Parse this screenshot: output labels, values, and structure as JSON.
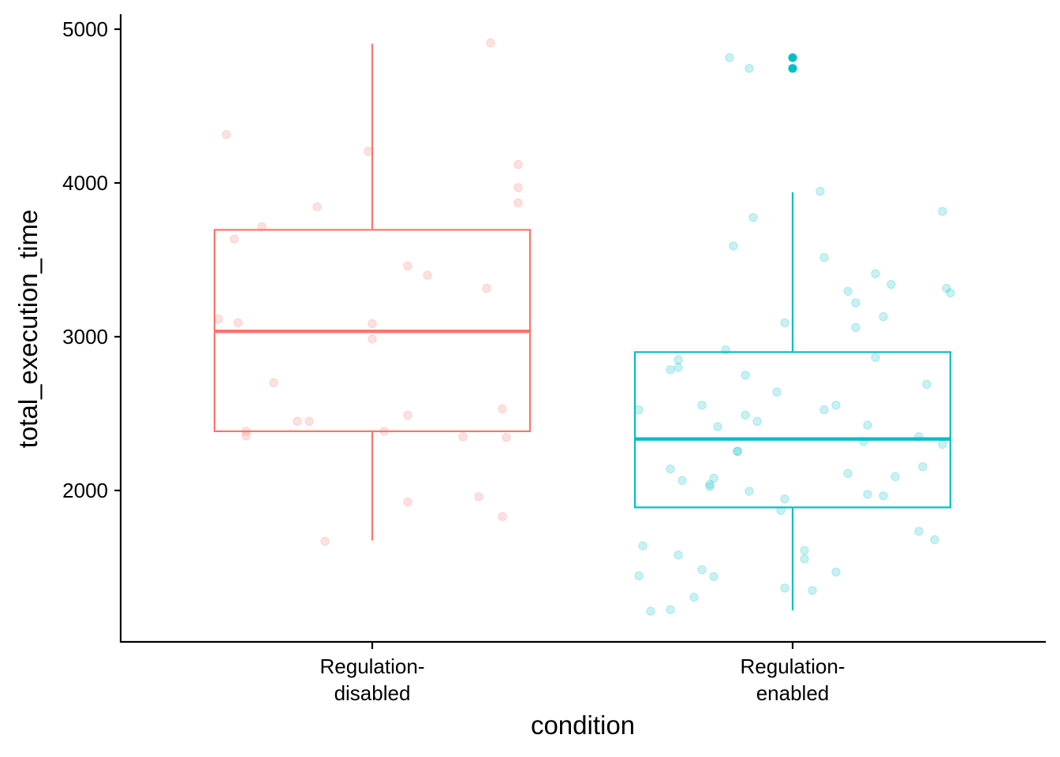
{
  "chart_data": {
    "type": "box",
    "xlabel": "condition",
    "ylabel": "total_execution_time",
    "ylim": [
      1100,
      5100
    ],
    "y_ticks": [
      2000,
      3000,
      4000,
      5000
    ],
    "grid": false,
    "legend": "none",
    "groups": [
      {
        "label_lines": [
          "Regulation-",
          "disabled"
        ],
        "color": "#F8766D",
        "box": {
          "q1": 2385,
          "median": 3035,
          "q3": 3695,
          "whisker_low": 1675,
          "whisker_high": 4905
        },
        "outliers": [],
        "points": [
          {
            "dx": -0.39,
            "y": 3115
          },
          {
            "dx": -0.37,
            "y": 4315
          },
          {
            "dx": -0.35,
            "y": 3635
          },
          {
            "dx": -0.34,
            "y": 3090
          },
          {
            "dx": -0.32,
            "y": 2385
          },
          {
            "dx": -0.32,
            "y": 2355
          },
          {
            "dx": -0.28,
            "y": 3715
          },
          {
            "dx": -0.25,
            "y": 2700
          },
          {
            "dx": -0.19,
            "y": 2450
          },
          {
            "dx": -0.16,
            "y": 2450
          },
          {
            "dx": -0.14,
            "y": 3845
          },
          {
            "dx": -0.12,
            "y": 1670
          },
          {
            "dx": -0.01,
            "y": 4205
          },
          {
            "dx": 0.0,
            "y": 3085
          },
          {
            "dx": 0.0,
            "y": 2985
          },
          {
            "dx": 0.03,
            "y": 2385
          },
          {
            "dx": 0.09,
            "y": 3460
          },
          {
            "dx": 0.09,
            "y": 2490
          },
          {
            "dx": 0.09,
            "y": 1925
          },
          {
            "dx": 0.14,
            "y": 3400
          },
          {
            "dx": 0.23,
            "y": 2350
          },
          {
            "dx": 0.27,
            "y": 1960
          },
          {
            "dx": 0.29,
            "y": 3315
          },
          {
            "dx": 0.3,
            "y": 4910
          },
          {
            "dx": 0.33,
            "y": 2530
          },
          {
            "dx": 0.33,
            "y": 1830
          },
          {
            "dx": 0.34,
            "y": 2345
          },
          {
            "dx": 0.37,
            "y": 3970
          },
          {
            "dx": 0.37,
            "y": 3870
          },
          {
            "dx": 0.37,
            "y": 4120
          }
        ]
      },
      {
        "label_lines": [
          "Regulation-",
          "enabled"
        ],
        "color": "#00BFC4",
        "box": {
          "q1": 1890,
          "median": 2335,
          "q3": 2900,
          "whisker_low": 1220,
          "whisker_high": 3940
        },
        "outliers": [
          4815,
          4745
        ],
        "points": [
          {
            "dx": -0.39,
            "y": 2525
          },
          {
            "dx": -0.38,
            "y": 1640
          },
          {
            "dx": -0.39,
            "y": 1445
          },
          {
            "dx": -0.36,
            "y": 1215
          },
          {
            "dx": -0.31,
            "y": 1225
          },
          {
            "dx": -0.31,
            "y": 2140
          },
          {
            "dx": -0.31,
            "y": 2785
          },
          {
            "dx": -0.29,
            "y": 2850
          },
          {
            "dx": -0.29,
            "y": 2800
          },
          {
            "dx": -0.29,
            "y": 1580
          },
          {
            "dx": -0.28,
            "y": 2065
          },
          {
            "dx": -0.25,
            "y": 1305
          },
          {
            "dx": -0.23,
            "y": 2555
          },
          {
            "dx": -0.23,
            "y": 1485
          },
          {
            "dx": -0.21,
            "y": 2040
          },
          {
            "dx": -0.21,
            "y": 2025
          },
          {
            "dx": -0.2,
            "y": 1440
          },
          {
            "dx": -0.2,
            "y": 2080
          },
          {
            "dx": -0.19,
            "y": 2415
          },
          {
            "dx": -0.17,
            "y": 2915
          },
          {
            "dx": -0.16,
            "y": 4815
          },
          {
            "dx": -0.15,
            "y": 3590
          },
          {
            "dx": -0.14,
            "y": 2255
          },
          {
            "dx": -0.14,
            "y": 2255
          },
          {
            "dx": -0.12,
            "y": 2750
          },
          {
            "dx": -0.12,
            "y": 2490
          },
          {
            "dx": -0.11,
            "y": 1995
          },
          {
            "dx": -0.11,
            "y": 4745
          },
          {
            "dx": -0.1,
            "y": 3775
          },
          {
            "dx": -0.09,
            "y": 2450
          },
          {
            "dx": -0.04,
            "y": 2640
          },
          {
            "dx": -0.03,
            "y": 1870
          },
          {
            "dx": -0.02,
            "y": 1945
          },
          {
            "dx": -0.02,
            "y": 1365
          },
          {
            "dx": -0.02,
            "y": 3090
          },
          {
            "dx": 0.03,
            "y": 1610
          },
          {
            "dx": 0.03,
            "y": 1555
          },
          {
            "dx": 0.05,
            "y": 1350
          },
          {
            "dx": 0.07,
            "y": 3945
          },
          {
            "dx": 0.08,
            "y": 2525
          },
          {
            "dx": 0.08,
            "y": 3515
          },
          {
            "dx": 0.11,
            "y": 2555
          },
          {
            "dx": 0.11,
            "y": 1470
          },
          {
            "dx": 0.14,
            "y": 3295
          },
          {
            "dx": 0.14,
            "y": 2110
          },
          {
            "dx": 0.16,
            "y": 3220
          },
          {
            "dx": 0.16,
            "y": 3060
          },
          {
            "dx": 0.18,
            "y": 2320
          },
          {
            "dx": 0.19,
            "y": 2425
          },
          {
            "dx": 0.19,
            "y": 1975
          },
          {
            "dx": 0.21,
            "y": 3410
          },
          {
            "dx": 0.21,
            "y": 2865
          },
          {
            "dx": 0.23,
            "y": 3130
          },
          {
            "dx": 0.23,
            "y": 1965
          },
          {
            "dx": 0.25,
            "y": 3340
          },
          {
            "dx": 0.26,
            "y": 2090
          },
          {
            "dx": 0.32,
            "y": 2350
          },
          {
            "dx": 0.32,
            "y": 1735
          },
          {
            "dx": 0.33,
            "y": 2155
          },
          {
            "dx": 0.34,
            "y": 2690
          },
          {
            "dx": 0.36,
            "y": 1680
          },
          {
            "dx": 0.38,
            "y": 2300
          },
          {
            "dx": 0.38,
            "y": 3815
          },
          {
            "dx": 0.39,
            "y": 3315
          },
          {
            "dx": 0.4,
            "y": 3285
          }
        ]
      }
    ]
  }
}
